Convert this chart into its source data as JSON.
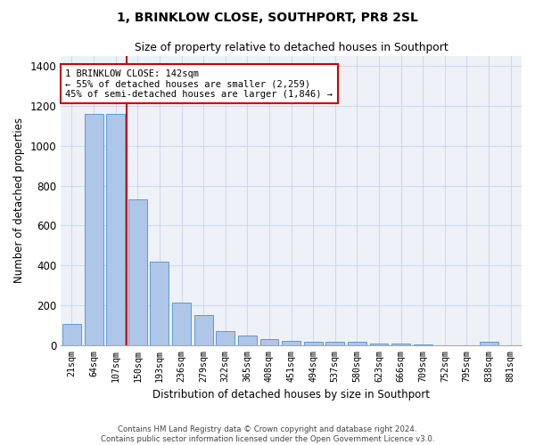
{
  "title": "1, BRINKLOW CLOSE, SOUTHPORT, PR8 2SL",
  "subtitle": "Size of property relative to detached houses in Southport",
  "xlabel": "Distribution of detached houses by size in Southport",
  "ylabel": "Number of detached properties",
  "categories": [
    "21sqm",
    "64sqm",
    "107sqm",
    "150sqm",
    "193sqm",
    "236sqm",
    "279sqm",
    "322sqm",
    "365sqm",
    "408sqm",
    "451sqm",
    "494sqm",
    "537sqm",
    "580sqm",
    "623sqm",
    "666sqm",
    "709sqm",
    "752sqm",
    "795sqm",
    "838sqm",
    "881sqm"
  ],
  "values": [
    107,
    1160,
    1160,
    730,
    418,
    215,
    150,
    70,
    48,
    32,
    20,
    17,
    15,
    15,
    10,
    10,
    5,
    0,
    0,
    15,
    0
  ],
  "bar_color": "#aec6e8",
  "bar_edge_color": "#5b9bd5",
  "grid_color": "#d0d8e8",
  "background_color": "#eef2f8",
  "red_line_x": 2.5,
  "annotation_line1": "1 BRINKLOW CLOSE: 142sqm",
  "annotation_line2": "← 55% of detached houses are smaller (2,259)",
  "annotation_line3": "45% of semi-detached houses are larger (1,846) →",
  "annotation_box_color": "#ffffff",
  "annotation_box_edge": "#cc0000",
  "ylim": [
    0,
    1450
  ],
  "yticks": [
    0,
    200,
    400,
    600,
    800,
    1000,
    1200,
    1400
  ],
  "footer1": "Contains HM Land Registry data © Crown copyright and database right 2024.",
  "footer2": "Contains public sector information licensed under the Open Government Licence v3.0."
}
